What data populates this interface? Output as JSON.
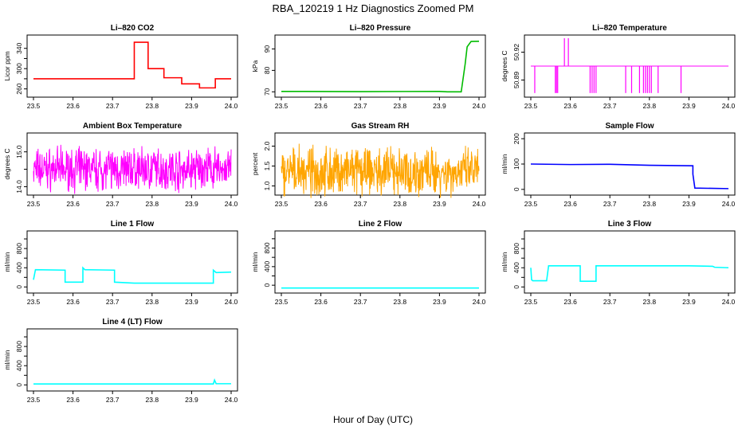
{
  "figure": {
    "title": "RBA_120219  1 Hz Diagnostics Zoomed PM",
    "xlabel": "Hour of Day (UTC)"
  },
  "chart_data": [
    {
      "type": "line",
      "title": "Li–820 CO2",
      "ylabel": "Licor ppm",
      "color": "#ff0000",
      "xlim": [
        23.5,
        24.0
      ],
      "ylim": [
        250,
        360
      ],
      "xticks": [
        "23.5",
        "23.6",
        "23.7",
        "23.8",
        "23.9",
        "24.0"
      ],
      "yticks": [
        260,
        280,
        300,
        320,
        340
      ],
      "yticklabels": [
        "260",
        "",
        "300",
        "",
        "340"
      ],
      "x": [
        23.5,
        23.755,
        23.755,
        23.79,
        23.79,
        23.83,
        23.83,
        23.875,
        23.875,
        23.92,
        23.92,
        23.96,
        23.96,
        24.0
      ],
      "y": [
        280,
        280,
        352,
        352,
        300,
        300,
        282,
        282,
        270,
        270,
        262,
        262,
        280,
        280
      ]
    },
    {
      "type": "line",
      "title": "Li–820 Pressure",
      "ylabel": "kPa",
      "color": "#00bb00",
      "xlim": [
        23.5,
        24.0
      ],
      "ylim": [
        69,
        95
      ],
      "xticks": [
        "23.5",
        "23.6",
        "23.7",
        "23.8",
        "23.9",
        "24.0"
      ],
      "yticks": [
        70,
        80,
        90
      ],
      "yticklabels": [
        "70",
        "80",
        "90"
      ],
      "x": [
        23.5,
        23.7,
        23.9,
        23.92,
        23.955,
        23.965,
        23.97,
        23.98,
        24.0
      ],
      "y": [
        70.2,
        70.1,
        70.2,
        70.0,
        70.0,
        83,
        91,
        93.5,
        93.6
      ]
    },
    {
      "type": "line",
      "title": "Li–820 Temperature",
      "ylabel": "degrees C",
      "color": "#ff00ff",
      "xlim": [
        23.5,
        24.0
      ],
      "ylim": [
        50.875,
        50.935
      ],
      "xticks": [
        "23.5",
        "23.6",
        "23.7",
        "23.8",
        "23.9",
        "24.0"
      ],
      "yticks": [
        50.89,
        50.92
      ],
      "yticklabels": [
        "50.89",
        "50.92"
      ],
      "baseline": 50.905,
      "dips": [
        23.51,
        23.562,
        23.565,
        23.568,
        23.65,
        23.655,
        23.66,
        23.665,
        23.74,
        23.755,
        23.775,
        23.785,
        23.79,
        23.795,
        23.8,
        23.805,
        23.822,
        23.88
      ],
      "dip_value": 50.876,
      "spikes": [
        23.585,
        23.595
      ],
      "spike_value": 50.935
    },
    {
      "type": "line",
      "title": "Ambient Box Temperature",
      "ylabel": "degrees C",
      "color": "#ff00ff",
      "xlim": [
        23.5,
        24.0
      ],
      "ylim": [
        13.85,
        15.45
      ],
      "xticks": [
        "23.5",
        "23.6",
        "23.7",
        "23.8",
        "23.9",
        "24.0"
      ],
      "yticks": [
        14.0,
        14.5,
        15.0
      ],
      "yticklabels": [
        "14.0",
        "",
        "15.0"
      ],
      "noise": {
        "center": 14.5,
        "amplitude": 0.55,
        "n": 600
      }
    },
    {
      "type": "line",
      "title": "Gas Stream RH",
      "ylabel": "percent",
      "color": "#ffa500",
      "xlim": [
        23.5,
        24.0
      ],
      "ylim": [
        0.85,
        2.25
      ],
      "xticks": [
        "23.5",
        "23.6",
        "23.7",
        "23.8",
        "23.9",
        "24.0"
      ],
      "yticks": [
        1.0,
        1.5,
        2.0
      ],
      "yticklabels": [
        "1.0",
        "1.5",
        "2.0"
      ],
      "noise": {
        "center": 1.35,
        "amplitude": 0.55,
        "n": 600
      }
    },
    {
      "type": "line",
      "title": "Sample Flow",
      "ylabel": "ml/min",
      "color": "#0000ff",
      "xlim": [
        23.5,
        24.0
      ],
      "ylim": [
        -10,
        210
      ],
      "xticks": [
        "23.5",
        "23.6",
        "23.7",
        "23.8",
        "23.9",
        "24.0"
      ],
      "yticks": [
        0,
        100,
        200
      ],
      "yticklabels": [
        "0",
        "100",
        "200"
      ],
      "x": [
        23.5,
        23.6,
        23.7,
        23.8,
        23.91,
        23.91,
        23.915,
        24.0
      ],
      "y": [
        100,
        98,
        99,
        95,
        93,
        60,
        5,
        3
      ]
    },
    {
      "type": "line",
      "title": "Line 1 Flow",
      "ylabel": "ml/min",
      "color": "#00ffff",
      "xlim": [
        23.5,
        24.0
      ],
      "ylim": [
        -60,
        1100
      ],
      "xticks": [
        "23.5",
        "23.6",
        "23.7",
        "23.8",
        "23.9",
        "24.0"
      ],
      "yticks": [
        0,
        200,
        400,
        600,
        800,
        1000
      ],
      "yticklabels": [
        "0",
        "",
        "400",
        "",
        "800",
        ""
      ],
      "x": [
        23.5,
        23.505,
        23.58,
        23.58,
        23.625,
        23.625,
        23.63,
        23.705,
        23.705,
        23.755,
        23.955,
        23.955,
        23.962,
        24.0
      ],
      "y": [
        150,
        360,
        350,
        100,
        100,
        400,
        360,
        350,
        100,
        80,
        80,
        350,
        300,
        310
      ]
    },
    {
      "type": "line",
      "title": "Line 2 Flow",
      "ylabel": "ml/min",
      "color": "#00ffff",
      "xlim": [
        23.5,
        24.0
      ],
      "ylim": [
        -100,
        1100
      ],
      "xticks": [
        "23.5",
        "23.6",
        "23.7",
        "23.8",
        "23.9",
        "24.0"
      ],
      "yticks": [
        0,
        200,
        400,
        600,
        800,
        1000
      ],
      "yticklabels": [
        "0",
        "",
        "400",
        "",
        "800",
        ""
      ],
      "x": [
        23.5,
        24.0
      ],
      "y": [
        -60,
        -60
      ]
    },
    {
      "type": "line",
      "title": "Line 3 Flow",
      "ylabel": "ml/min",
      "color": "#00ffff",
      "xlim": [
        23.5,
        24.0
      ],
      "ylim": [
        -60,
        1100
      ],
      "xticks": [
        "23.5",
        "23.6",
        "23.7",
        "23.8",
        "23.9",
        "24.0"
      ],
      "yticks": [
        0,
        200,
        400,
        600,
        800,
        1000
      ],
      "yticklabels": [
        "0",
        "",
        "400",
        "",
        "800",
        ""
      ],
      "x": [
        23.5,
        23.502,
        23.505,
        23.54,
        23.545,
        23.625,
        23.625,
        23.665,
        23.665,
        23.9,
        23.96,
        23.965,
        24.0
      ],
      "y": [
        400,
        150,
        130,
        130,
        440,
        440,
        120,
        120,
        440,
        440,
        430,
        410,
        400
      ]
    },
    {
      "type": "line",
      "title": "Line 4 (LT) Flow",
      "ylabel": "ml/min",
      "color": "#00ffff",
      "xlim": [
        23.5,
        24.0
      ],
      "ylim": [
        -60,
        1100
      ],
      "xticks": [
        "23.5",
        "23.6",
        "23.7",
        "23.8",
        "23.9",
        "24.0"
      ],
      "yticks": [
        0,
        200,
        400,
        600,
        800,
        1000
      ],
      "yticklabels": [
        "0",
        "",
        "400",
        "",
        "800",
        ""
      ],
      "x": [
        23.5,
        23.955,
        23.958,
        23.962,
        24.0
      ],
      "y": [
        20,
        20,
        100,
        25,
        25
      ]
    }
  ]
}
